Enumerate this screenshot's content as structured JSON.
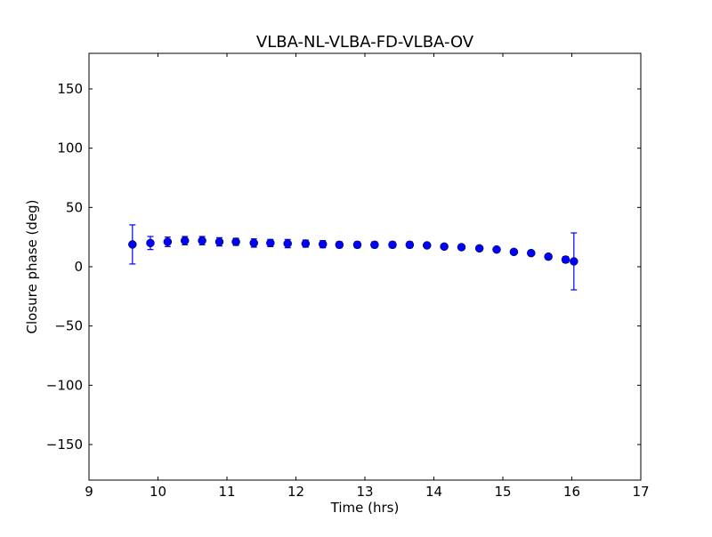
{
  "chart_data": {
    "type": "scatter",
    "title": "VLBA-NL-VLBA-FD-VLBA-OV",
    "xlabel": "Time (hrs)",
    "ylabel": "Closure phase (deg)",
    "xlim": [
      9,
      17
    ],
    "ylim": [
      -180,
      180
    ],
    "xticks": [
      9,
      10,
      11,
      12,
      13,
      14,
      15,
      16,
      17
    ],
    "yticks": [
      -150,
      -100,
      -50,
      0,
      50,
      100,
      150
    ],
    "ytick_labels": [
      "−150",
      "−100",
      "−50",
      "0",
      "50",
      "100",
      "150"
    ],
    "grid": false,
    "marker_color": "#0000ff",
    "points": {
      "x": [
        9.63,
        9.89,
        10.14,
        10.39,
        10.64,
        10.89,
        11.13,
        11.39,
        11.63,
        11.88,
        12.14,
        12.39,
        12.63,
        12.89,
        13.14,
        13.4,
        13.65,
        13.9,
        14.15,
        14.4,
        14.66,
        14.91,
        15.16,
        15.41,
        15.66,
        15.91,
        16.03
      ],
      "y": [
        18.8,
        20,
        21,
        22,
        22,
        21,
        21,
        20,
        20,
        19.5,
        19.5,
        19,
        18.5,
        18.5,
        18.5,
        18.5,
        18.5,
        18,
        17,
        16.5,
        15.5,
        14.5,
        12.5,
        11.5,
        8.5,
        6,
        4.5
      ],
      "yerr": [
        16.5,
        5.5,
        4,
        3.5,
        3.5,
        3.5,
        3,
        3.5,
        3,
        3.5,
        3,
        3,
        2.5,
        2.5,
        2.5,
        2.5,
        2.5,
        2,
        2,
        2,
        2,
        2,
        2,
        2,
        2,
        2.5,
        24
      ]
    }
  }
}
